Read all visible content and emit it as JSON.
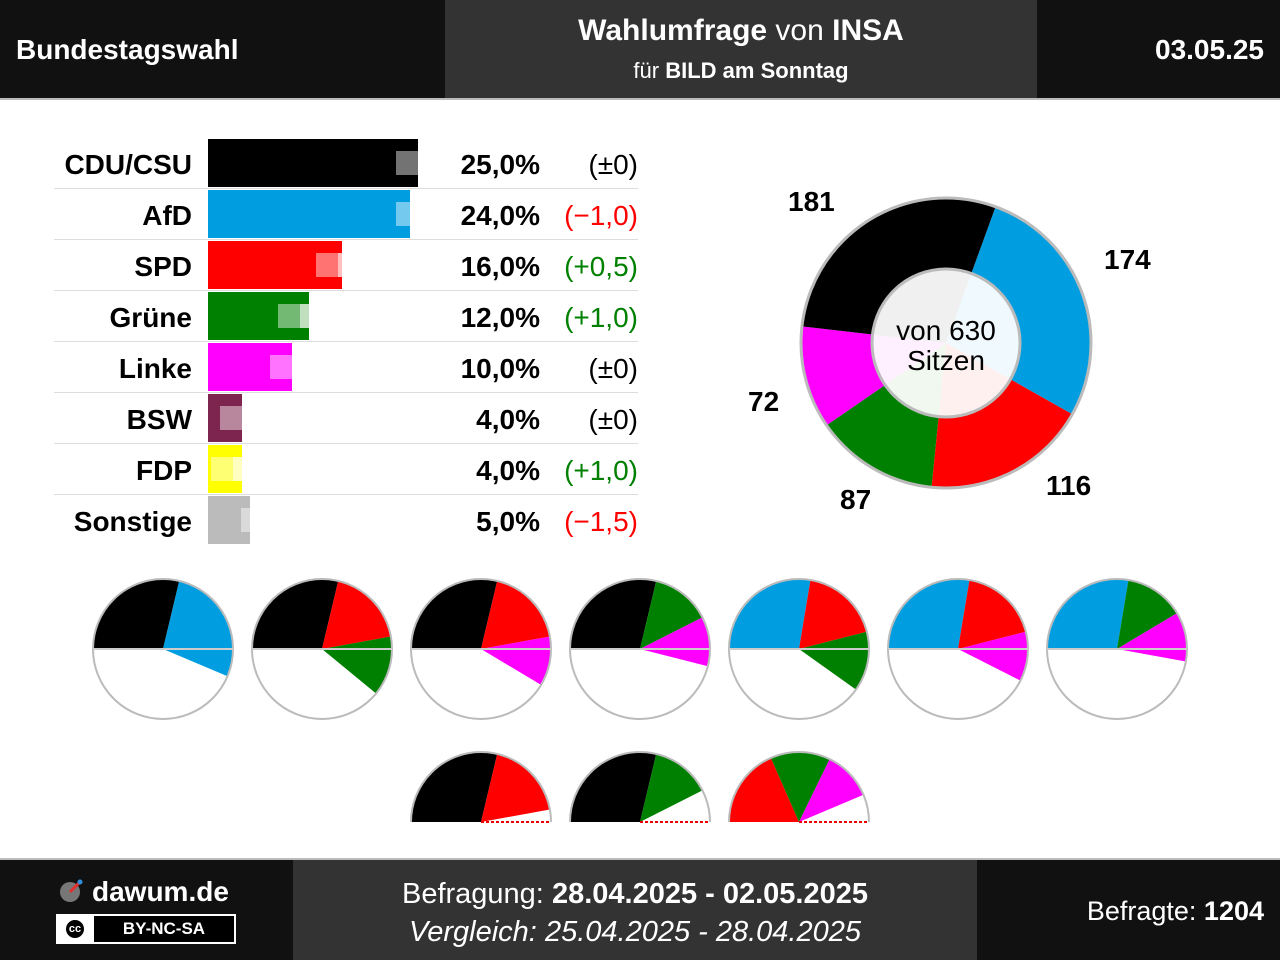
{
  "header": {
    "title": "Bundestagswahl",
    "poll_bold": "Wahlumfrage",
    "poll_von": "von",
    "institute": "INSA",
    "client_prefix": "für",
    "client": "BILD am Sonntag",
    "date": "03.05.25"
  },
  "footer": {
    "site": "dawum.de",
    "license": "BY-NC-SA",
    "license_icon": "cc",
    "survey_label": "Befragung:",
    "survey_period": "28.04.2025 - 02.05.2025",
    "compare_label": "Vergleich:",
    "compare_period": "25.04.2025 - 28.04.2025",
    "respondents_label": "Befragte:",
    "respondents": "1204"
  },
  "colors": {
    "CDU/CSU": "#000000",
    "AfD": "#009ee0",
    "SPD": "#ff0000",
    "Grüne": "#008000",
    "Linke": "#ff00ff",
    "BSW": "#7d254f",
    "FDP": "#ffff00",
    "Sonstige": "#bbbbbb",
    "positive": "#008000",
    "negative": "#ff0000",
    "neutral": "#000000"
  },
  "chart_data": [
    {
      "type": "bar",
      "categories": [
        "CDU/CSU",
        "AfD",
        "SPD",
        "Grüne",
        "Linke",
        "BSW",
        "FDP",
        "Sonstige"
      ],
      "series": [
        {
          "values": [
            25.0,
            24.0,
            16.0,
            12.0,
            10.0,
            4.0,
            4.0,
            5.0
          ]
        },
        {
          "values": [
            25.0,
            25.0,
            15.5,
            11.0,
            10.0,
            4.0,
            3.0,
            6.5
          ]
        }
      ],
      "value_labels": [
        "25,0%",
        "24,0%",
        "16,0%",
        "12,0%",
        "10,0%",
        "4,0%",
        "4,0%",
        "5,0%"
      ],
      "change_labels": [
        "(±0)",
        "(−1,0)",
        "(+0,5)",
        "(+1,0)",
        "(±0)",
        "(±0)",
        "(+1,0)",
        "(−1,5)"
      ],
      "change_sign": [
        "neutral",
        "negative",
        "positive",
        "positive",
        "neutral",
        "neutral",
        "positive",
        "negative"
      ]
    },
    {
      "type": "pie",
      "categories": [
        "CDU/CSU",
        "AfD",
        "SPD",
        "Grüne",
        "Linke"
      ],
      "values": [
        181,
        174,
        116,
        87,
        72
      ],
      "labels": [
        "181",
        "174",
        "116",
        "87",
        "72"
      ],
      "center_text_1": "von 630",
      "center_text_2": "Sitzen",
      "total": 630
    },
    {
      "type": "pie",
      "coalitions_full": [
        [
          "CDU/CSU",
          "AfD"
        ],
        [
          "CDU/CSU",
          "SPD",
          "Grüne"
        ],
        [
          "CDU/CSU",
          "SPD",
          "Linke"
        ],
        [
          "CDU/CSU",
          "Grüne",
          "Linke"
        ],
        [
          "AfD",
          "SPD",
          "Grüne"
        ],
        [
          "AfD",
          "SPD",
          "Linke"
        ],
        [
          "AfD",
          "Grüne",
          "Linke"
        ]
      ],
      "coalitions_insufficient": [
        [
          "CDU/CSU",
          "SPD"
        ],
        [
          "CDU/CSU",
          "Grüne"
        ],
        [
          "SPD",
          "Grüne",
          "Linke"
        ]
      ]
    }
  ]
}
